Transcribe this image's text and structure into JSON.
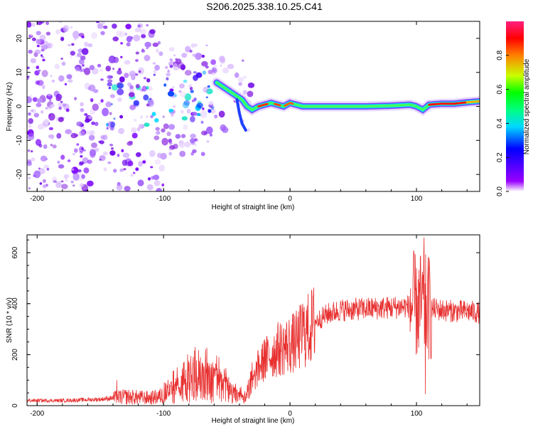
{
  "title": "S206.2025.338.10.25.C41",
  "chart_data": [
    {
      "type": "heatmap",
      "name": "spectrogram",
      "xlabel": "Height of straight line (km)",
      "ylabel": "Frequency (Hz)",
      "xlim": [
        -208,
        150
      ],
      "ylim": [
        -25,
        25
      ],
      "xticks": [
        -200,
        -100,
        0,
        100
      ],
      "xtick_labels": [
        "-200",
        "-100",
        "0",
        "100"
      ],
      "yticks": [
        20,
        10,
        0,
        -10,
        -20
      ],
      "ytick_labels": [
        "20",
        "10",
        "0",
        "-10",
        "-20"
      ],
      "signal_ridge": {
        "x": [
          -58,
          -54,
          -50,
          -46,
          -42,
          -38,
          -34,
          -30,
          -25,
          -20,
          -15,
          -10,
          -5,
          0,
          5,
          10,
          20,
          40,
          60,
          80,
          95,
          100,
          105,
          110,
          120,
          130,
          140,
          150
        ],
        "y": [
          7,
          6,
          5,
          4,
          3,
          2,
          0,
          -1,
          0,
          0.5,
          1,
          0.5,
          0,
          1,
          0.5,
          0,
          0,
          0,
          0,
          0.2,
          0.5,
          0,
          -1,
          0.5,
          0.8,
          0.8,
          1.2,
          1.5
        ]
      },
      "colorbar": {
        "label": "Normalized spectral amplitude",
        "range": [
          0,
          1
        ],
        "ticks": [
          0.0,
          0.2,
          0.4,
          0.6,
          0.8
        ],
        "tick_labels": [
          "0.0",
          "0.2",
          "0.4",
          "0.6",
          "0.8"
        ],
        "colormap": [
          "#ffffff",
          "#7a00ff",
          "#0000ff",
          "#00d8ff",
          "#00ff80",
          "#00ff00",
          "#c8ff00",
          "#ff8000",
          "#ff0000",
          "#ff2080"
        ]
      }
    },
    {
      "type": "line",
      "name": "snr",
      "xlabel": "Height of straight line (km)",
      "ylabel": "SNR (10 * v/v)",
      "xlim": [
        -208,
        150
      ],
      "ylim": [
        0,
        670
      ],
      "xticks": [
        -200,
        -100,
        0,
        100
      ],
      "xtick_labels": [
        "-200",
        "-100",
        "0",
        "100"
      ],
      "yticks": [
        0,
        200,
        400,
        600
      ],
      "ytick_labels": [
        "0",
        "200",
        "400",
        "600"
      ],
      "line_color": "#e83030",
      "trend": {
        "x": [
          -208,
          -180,
          -150,
          -140,
          -130,
          -110,
          -100,
          -90,
          -80,
          -70,
          -60,
          -50,
          -40,
          -35,
          -30,
          -25,
          -20,
          -15,
          -10,
          -5,
          0,
          5,
          10,
          15,
          20,
          30,
          40,
          60,
          80,
          95,
          100,
          105,
          110,
          120,
          130,
          140,
          150
        ],
        "y": [
          20,
          20,
          25,
          30,
          35,
          30,
          40,
          60,
          80,
          90,
          85,
          60,
          30,
          25,
          80,
          150,
          180,
          200,
          220,
          230,
          240,
          250,
          280,
          300,
          330,
          360,
          375,
          380,
          385,
          390,
          395,
          390,
          380,
          375,
          370,
          370,
          365
        ]
      },
      "spikes": [
        {
          "x": -137,
          "y": 100
        },
        {
          "x": -75,
          "y": 230
        },
        {
          "x": -30,
          "y": 170
        },
        {
          "x": -20,
          "y": 260
        },
        {
          "x": 10,
          "y": 400
        },
        {
          "x": 100,
          "y": 540
        },
        {
          "x": 106,
          "y": 660
        },
        {
          "x": 107,
          "y": 45
        },
        {
          "x": 110,
          "y": 580
        }
      ]
    }
  ]
}
